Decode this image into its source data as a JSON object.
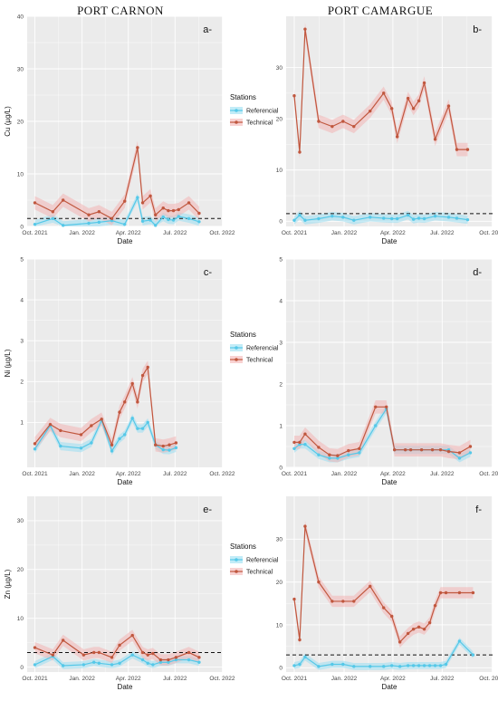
{
  "titles": {
    "left": "PORT CARNON",
    "right": "PORT CAMARGUE"
  },
  "legend": {
    "title": "Stations",
    "items": [
      {
        "label": "Referencial",
        "color": "#55c8e8"
      },
      {
        "label": "Technical",
        "color": "#c0573e"
      }
    ]
  },
  "x_axis": {
    "label": "Date",
    "ticks": [
      "Oct. 2021",
      "Jan. 2022",
      "Apr. 2022",
      "Jul. 2022",
      "Oct. 2022"
    ]
  },
  "colors": {
    "panel_bg": "#ebebeb",
    "grid": "#ffffff",
    "ribbon_ref": "#9adff2",
    "ribbon_tech": "#f3b4b4"
  },
  "chart_data": [
    {
      "type": "line",
      "panel": "a-",
      "ylabel": "Cu (µg/L)",
      "ylim": [
        0,
        40
      ],
      "yticks": [
        0,
        10,
        20,
        30,
        40
      ],
      "xlim": [
        -15,
        366
      ],
      "threshold": 1.5,
      "series": [
        {
          "name": "Referencial",
          "x": [
            0,
            35,
            55,
            105,
            125,
            150,
            175,
            200,
            210,
            225,
            235,
            250,
            260,
            270,
            280,
            300,
            320
          ],
          "y": [
            0.4,
            1.5,
            0.2,
            0.6,
            0.8,
            1.1,
            0.4,
            5.5,
            1.0,
            1.2,
            0.2,
            1.8,
            1.3,
            1.2,
            1.9,
            1.5,
            0.9
          ]
        },
        {
          "name": "Technical",
          "x": [
            0,
            35,
            55,
            105,
            125,
            150,
            175,
            200,
            210,
            225,
            235,
            250,
            260,
            270,
            280,
            300,
            320
          ],
          "y": [
            4.5,
            2.8,
            5.0,
            2.2,
            2.8,
            1.5,
            4.8,
            15.0,
            4.5,
            5.8,
            2.2,
            3.5,
            3.0,
            3.0,
            3.2,
            4.5,
            2.5
          ]
        }
      ]
    },
    {
      "type": "line",
      "panel": "b-",
      "ylabel": "",
      "ylim": [
        -1,
        40
      ],
      "yticks": [
        0,
        10,
        20,
        30
      ],
      "xlim": [
        -15,
        366
      ],
      "threshold": 1.5,
      "series": [
        {
          "name": "Referencial",
          "x": [
            0,
            10,
            20,
            45,
            70,
            90,
            110,
            140,
            165,
            180,
            190,
            210,
            220,
            230,
            240,
            260,
            285,
            300,
            320
          ],
          "y": [
            0.2,
            1.2,
            0.2,
            0.5,
            1.0,
            0.8,
            0.2,
            0.8,
            0.6,
            0.5,
            0.5,
            1.2,
            0.4,
            0.6,
            0.5,
            1.0,
            0.8,
            0.6,
            0.3
          ]
        },
        {
          "name": "Technical",
          "x": [
            0,
            10,
            20,
            45,
            70,
            90,
            110,
            140,
            165,
            180,
            190,
            210,
            220,
            230,
            240,
            260,
            285,
            300,
            320
          ],
          "y": [
            24.5,
            13.5,
            37.5,
            19.5,
            18.5,
            19.5,
            18.5,
            21.5,
            25.0,
            22.0,
            16.5,
            24.0,
            22.0,
            23.5,
            27.0,
            16.0,
            22.5,
            14.0,
            14.0
          ]
        }
      ]
    },
    {
      "type": "line",
      "panel": "c-",
      "ylabel": "Ni (µg/L)",
      "ylim": [
        -0.1,
        5
      ],
      "yticks": [
        1,
        2,
        3,
        4,
        5
      ],
      "xlim": [
        -15,
        366
      ],
      "series": [
        {
          "name": "Referencial",
          "x": [
            0,
            30,
            50,
            90,
            110,
            130,
            150,
            165,
            175,
            190,
            200,
            210,
            220,
            235,
            250,
            262,
            275
          ],
          "y": [
            0.35,
            0.92,
            0.42,
            0.37,
            0.5,
            1.05,
            0.3,
            0.6,
            0.7,
            1.1,
            0.85,
            0.85,
            1.0,
            0.45,
            0.33,
            0.32,
            0.38
          ]
        },
        {
          "name": "Technical",
          "x": [
            0,
            30,
            50,
            90,
            110,
            130,
            150,
            165,
            175,
            190,
            200,
            210,
            220,
            235,
            250,
            262,
            275
          ],
          "y": [
            0.48,
            0.95,
            0.8,
            0.7,
            0.92,
            1.08,
            0.45,
            1.25,
            1.5,
            1.95,
            1.5,
            2.15,
            2.35,
            0.45,
            0.42,
            0.45,
            0.5
          ]
        }
      ]
    },
    {
      "type": "line",
      "panel": "d-",
      "ylabel": "",
      "ylim": [
        0,
        5
      ],
      "yticks": [
        0,
        1,
        2,
        3,
        4,
        5
      ],
      "xlim": [
        -15,
        366
      ],
      "series": [
        {
          "name": "Referencial",
          "x": [
            0,
            10,
            20,
            45,
            65,
            80,
            100,
            120,
            150,
            170,
            185,
            205,
            215,
            235,
            255,
            270,
            285,
            305,
            325
          ],
          "y": [
            0.45,
            0.55,
            0.55,
            0.3,
            0.22,
            0.22,
            0.3,
            0.35,
            1.0,
            1.4,
            0.42,
            0.42,
            0.42,
            0.42,
            0.42,
            0.42,
            0.42,
            0.22,
            0.35
          ]
        },
        {
          "name": "Technical",
          "x": [
            0,
            10,
            20,
            45,
            65,
            80,
            100,
            120,
            150,
            170,
            185,
            205,
            215,
            235,
            255,
            270,
            285,
            305,
            325
          ],
          "y": [
            0.6,
            0.6,
            0.8,
            0.48,
            0.3,
            0.28,
            0.4,
            0.45,
            1.45,
            1.45,
            0.42,
            0.42,
            0.42,
            0.42,
            0.42,
            0.42,
            0.38,
            0.35,
            0.5
          ]
        }
      ]
    },
    {
      "type": "line",
      "panel": "e-",
      "ylabel": "Zn (µg/L)",
      "ylim": [
        -1,
        35
      ],
      "yticks": [
        0,
        10,
        20,
        30
      ],
      "xlim": [
        -15,
        366
      ],
      "threshold": 3.0,
      "series": [
        {
          "name": "Referencial",
          "x": [
            0,
            35,
            55,
            95,
            115,
            125,
            150,
            165,
            190,
            210,
            220,
            230,
            245,
            260,
            275,
            300,
            320
          ],
          "y": [
            0.5,
            2.2,
            0.3,
            0.5,
            1.0,
            0.8,
            0.5,
            0.8,
            2.5,
            1.5,
            0.8,
            0.5,
            1.0,
            1.0,
            1.5,
            1.5,
            1.0
          ]
        },
        {
          "name": "Technical",
          "x": [
            0,
            35,
            55,
            95,
            115,
            125,
            150,
            165,
            190,
            210,
            220,
            230,
            245,
            260,
            275,
            300,
            320
          ],
          "y": [
            4.0,
            2.5,
            5.5,
            2.5,
            3.0,
            3.0,
            2.0,
            4.5,
            6.5,
            3.0,
            2.5,
            2.8,
            1.5,
            1.5,
            2.0,
            3.0,
            2.0
          ]
        }
      ]
    },
    {
      "type": "line",
      "panel": "f-",
      "ylabel": "",
      "ylim": [
        -1,
        40
      ],
      "yticks": [
        0,
        10,
        20,
        30
      ],
      "xlim": [
        -15,
        366
      ],
      "threshold": 3.0,
      "series": [
        {
          "name": "Referencial",
          "x": [
            0,
            10,
            20,
            45,
            70,
            90,
            110,
            140,
            165,
            180,
            195,
            210,
            220,
            230,
            240,
            250,
            260,
            270,
            280,
            305,
            330
          ],
          "y": [
            0.5,
            0.8,
            2.5,
            0.3,
            0.8,
            0.8,
            0.3,
            0.3,
            0.3,
            0.5,
            0.3,
            0.5,
            0.5,
            0.5,
            0.5,
            0.5,
            0.5,
            0.5,
            0.8,
            6.2,
            3.0
          ]
        },
        {
          "name": "Technical",
          "x": [
            0,
            10,
            20,
            45,
            70,
            90,
            110,
            140,
            165,
            180,
            195,
            210,
            220,
            230,
            240,
            250,
            260,
            270,
            280,
            305,
            330
          ],
          "y": [
            16.0,
            6.5,
            33.0,
            20.0,
            15.5,
            15.5,
            15.5,
            19.0,
            14.0,
            12.0,
            6.0,
            8.0,
            9.0,
            9.5,
            9.0,
            10.5,
            14.5,
            17.5,
            17.5,
            17.5,
            17.5
          ]
        }
      ]
    }
  ]
}
